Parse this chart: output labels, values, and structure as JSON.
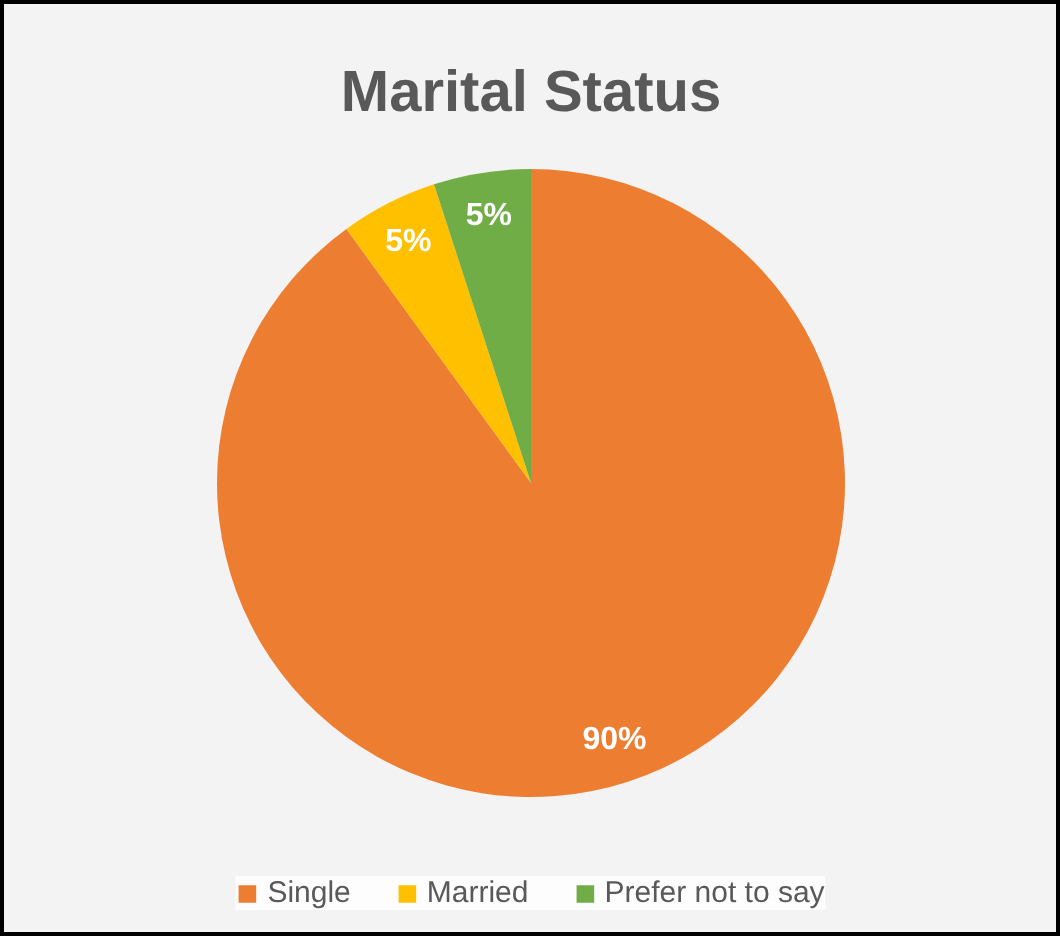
{
  "chart_data": {
    "type": "pie",
    "title": "Marital Status",
    "categories": [
      "Single",
      "Married",
      "Prefer not to say"
    ],
    "values": [
      90,
      5,
      5
    ],
    "colors": [
      "#ed7d31",
      "#ffc000",
      "#70ad47"
    ],
    "value_labels": [
      "90%",
      "5%",
      "5%"
    ],
    "legend": "bottom"
  }
}
